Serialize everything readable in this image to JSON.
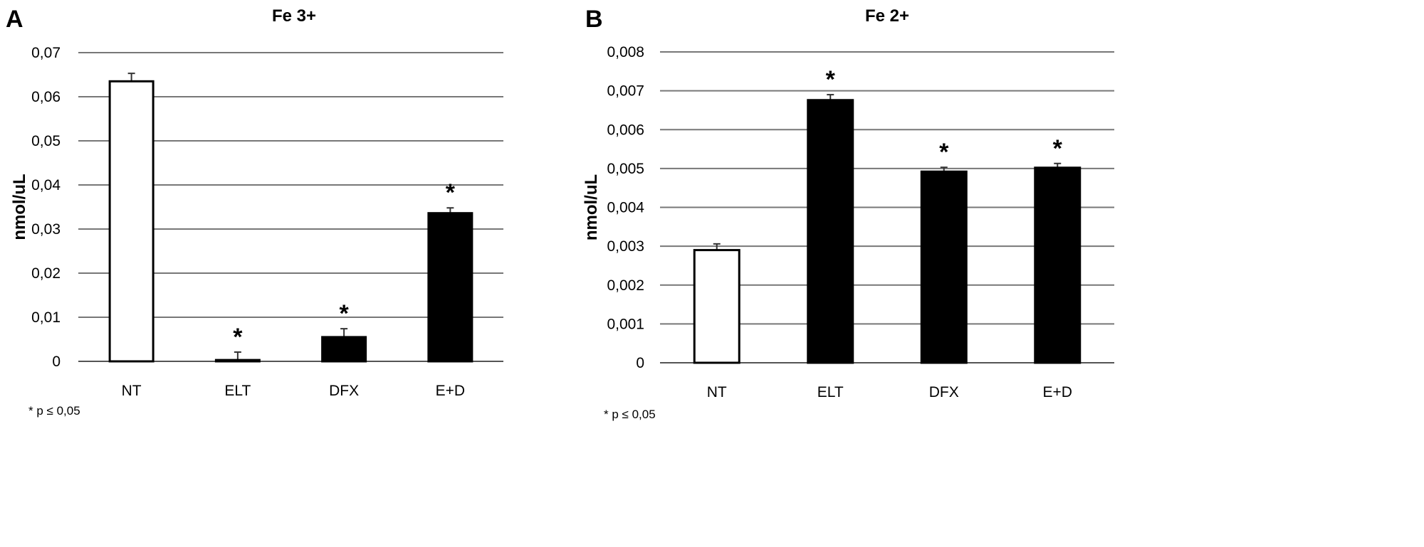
{
  "chart_data": [
    {
      "type": "bar",
      "panel_label": "A",
      "title": "Fe 3+",
      "ylabel": "nmol/uL",
      "xlabel": "",
      "categories": [
        "NT",
        "ELT",
        "DFX",
        "E+D"
      ],
      "values": [
        0.0635,
        0.0003,
        0.0055,
        0.0336
      ],
      "error_upper": [
        0.0653,
        0.0021,
        0.0074,
        0.0348
      ],
      "significant": [
        false,
        true,
        true,
        true
      ],
      "bar_colors": [
        "#ffffff",
        "#000000",
        "#000000",
        "#000000"
      ],
      "ylim": [
        0,
        0.07
      ],
      "yticks": [
        0,
        0.01,
        0.02,
        0.03,
        0.04,
        0.05,
        0.06,
        0.07
      ],
      "ytick_labels": [
        "0",
        "0,01",
        "0,02",
        "0,03",
        "0,04",
        "0,05",
        "0,06",
        "0,07"
      ],
      "grid": true,
      "significance_marker": "*",
      "footnote": "* p ≤ 0,05"
    },
    {
      "type": "bar",
      "panel_label": "B",
      "title": "Fe 2+",
      "ylabel": "nmol/uL",
      "xlabel": "",
      "categories": [
        "NT",
        "ELT",
        "DFX",
        "E+D"
      ],
      "values": [
        0.0029,
        0.00676,
        0.00492,
        0.00502
      ],
      "error_upper": [
        0.00306,
        0.0069,
        0.00503,
        0.00513
      ],
      "significant": [
        false,
        true,
        true,
        true
      ],
      "bar_colors": [
        "#ffffff",
        "#000000",
        "#000000",
        "#000000"
      ],
      "ylim": [
        0,
        0.008
      ],
      "yticks": [
        0,
        0.001,
        0.002,
        0.003,
        0.004,
        0.005,
        0.006,
        0.007,
        0.008
      ],
      "ytick_labels": [
        "0",
        "0,001",
        "0,002",
        "0,003",
        "0,004",
        "0,005",
        "0,006",
        "0,007",
        "0,008"
      ],
      "grid": true,
      "significance_marker": "*",
      "footnote": "* p ≤ 0,05"
    }
  ]
}
